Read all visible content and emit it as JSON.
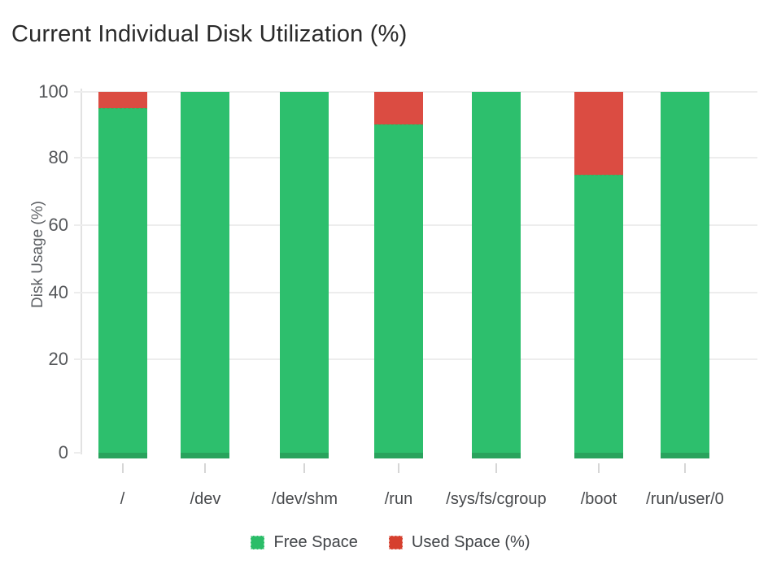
{
  "chart_data": {
    "type": "bar",
    "stacked": true,
    "title": "Current Individual Disk Utilization (%)",
    "xlabel": "",
    "ylabel": "Disk Usage (%)",
    "ylim": [
      0,
      100
    ],
    "yticks": [
      100,
      80,
      60,
      40,
      20,
      0
    ],
    "grid": true,
    "legend_position": "bottom",
    "categories": [
      "/",
      "/dev",
      "/dev/shm",
      "/run",
      "/sys/fs/cgroup",
      "/boot",
      "/run/user/0"
    ],
    "series": [
      {
        "name": "Free Space",
        "color": "#2dbf6d",
        "values": [
          95,
          100,
          100,
          90,
          100,
          75,
          100
        ]
      },
      {
        "name": "Used Space (%)",
        "color": "#db4c42",
        "values": [
          5,
          0,
          0,
          10,
          0,
          25,
          0
        ]
      }
    ]
  },
  "colors": {
    "free": "#2dbf6d",
    "used": "#db4c42",
    "bar_base": "#29a35d",
    "legend_used_swatch": "#d6402e",
    "legend_free_swatch": "#2bbd68"
  }
}
